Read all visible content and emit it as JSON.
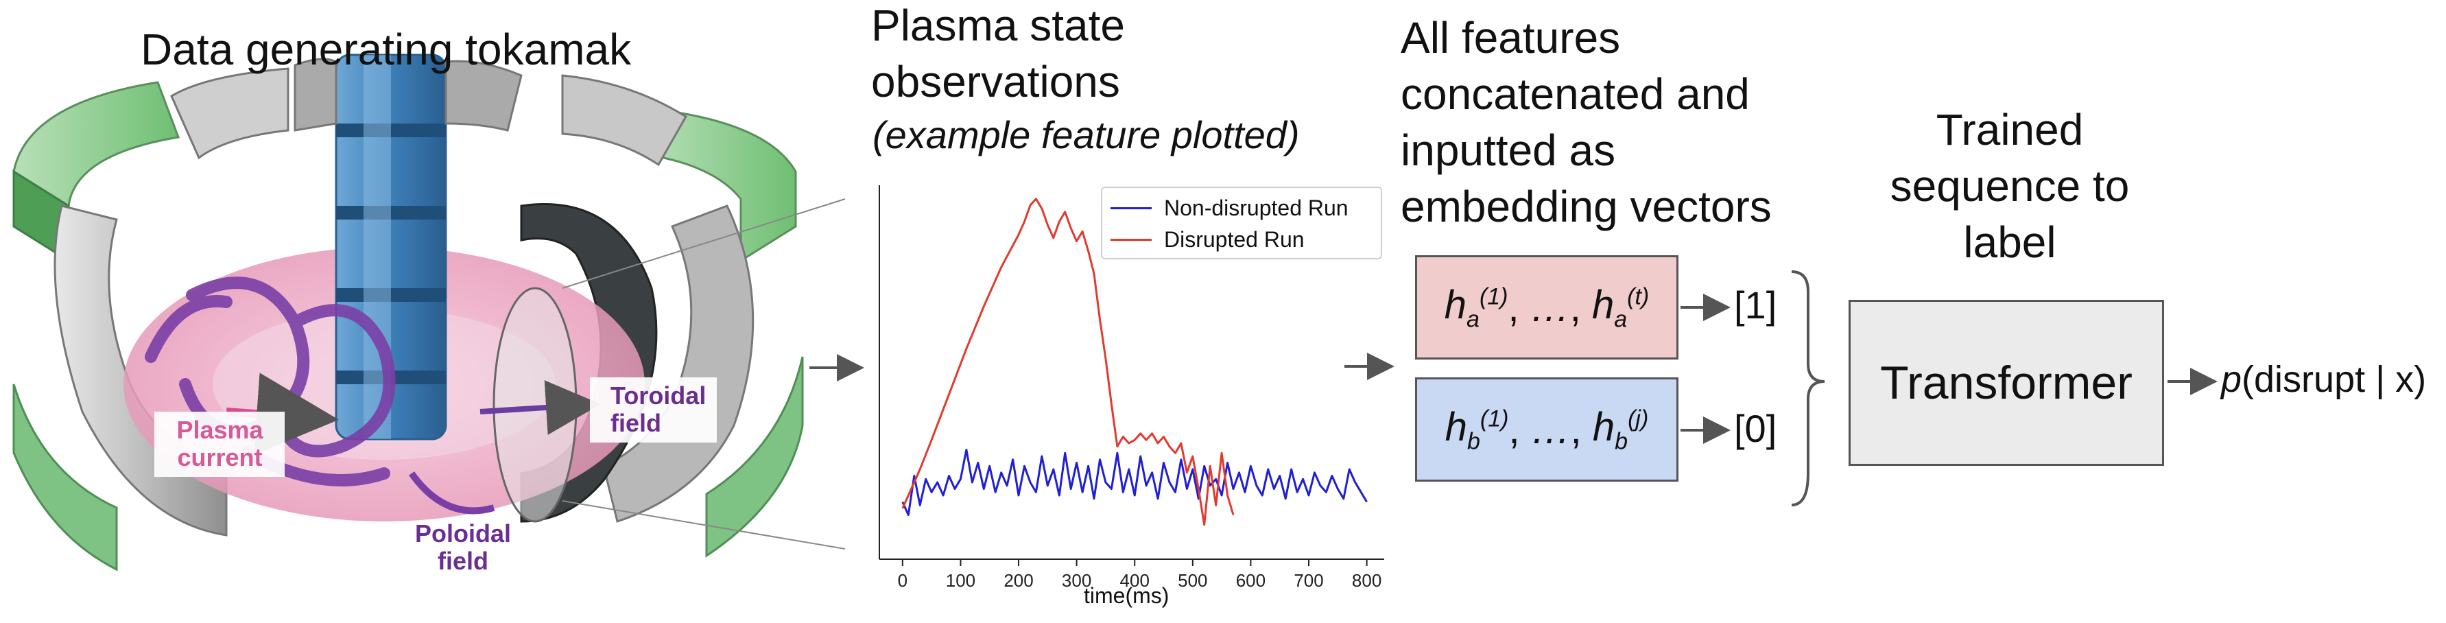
{
  "left_panel": {
    "title": "Data generating tokamak",
    "labels": {
      "plasma_current": [
        "Plasma",
        "current"
      ],
      "toroidal_field": [
        "Toroidal",
        "field"
      ],
      "poloidal_field": [
        "Poloidal",
        "field"
      ]
    }
  },
  "middle_panel": {
    "title_lines": [
      "Plasma state",
      "observations"
    ],
    "subtitle": "(example feature plotted)"
  },
  "features_panel": {
    "title_lines": [
      "All features",
      "concatenated and",
      "inputted as",
      "embedding vectors"
    ],
    "embedding_a": {
      "base": "h",
      "sub": "a",
      "sup_first": "(1)",
      "sup_last": "(t)",
      "ellipsis": "…",
      "label": "[1]"
    },
    "embedding_b": {
      "base": "h",
      "sub": "b",
      "sup_first": "(1)",
      "sup_last": "(j)",
      "ellipsis": "…",
      "label": "[0]"
    }
  },
  "model_panel": {
    "title_lines": [
      "Trained",
      "sequence to",
      "label"
    ],
    "box_label": "Transformer",
    "output": {
      "p": "p",
      "rest": "(disrupt | x)"
    }
  },
  "colors": {
    "non_disrupted": "#1f1fd6",
    "disrupted": "#e23a2f",
    "embedding_a_fill": "#f0cccc",
    "embedding_b_fill": "#c9d8f3",
    "transformer_fill": "#ebebeb",
    "poloidal_label": "#6a2d91",
    "plasma_label": "#d65a95"
  },
  "chart_data": {
    "type": "line",
    "title": "",
    "xlabel": "time(ms)",
    "ylabel": "",
    "xlim": [
      -40,
      830
    ],
    "ylim": [
      0,
      1
    ],
    "xticks": [
      0,
      100,
      200,
      300,
      400,
      500,
      600,
      700,
      800
    ],
    "legend_position": "top-right",
    "grid": false,
    "series": [
      {
        "name": "Non-disrupted Run",
        "color": "#1f1fd6",
        "x": [
          0,
          10,
          20,
          30,
          40,
          50,
          60,
          70,
          80,
          90,
          100,
          110,
          120,
          130,
          140,
          150,
          160,
          170,
          180,
          190,
          200,
          210,
          220,
          230,
          240,
          250,
          260,
          270,
          280,
          290,
          300,
          310,
          320,
          330,
          340,
          350,
          360,
          370,
          380,
          390,
          400,
          410,
          420,
          430,
          440,
          450,
          460,
          470,
          480,
          490,
          500,
          510,
          520,
          530,
          540,
          550,
          560,
          570,
          580,
          590,
          600,
          610,
          620,
          630,
          640,
          650,
          660,
          670,
          680,
          690,
          700,
          710,
          720,
          730,
          740,
          750,
          760,
          770,
          780,
          790,
          800
        ],
        "y": [
          0.06,
          0.02,
          0.14,
          0.05,
          0.13,
          0.09,
          0.12,
          0.08,
          0.14,
          0.1,
          0.13,
          0.22,
          0.12,
          0.18,
          0.1,
          0.17,
          0.09,
          0.15,
          0.11,
          0.19,
          0.08,
          0.17,
          0.12,
          0.09,
          0.2,
          0.11,
          0.16,
          0.08,
          0.21,
          0.1,
          0.18,
          0.09,
          0.17,
          0.07,
          0.19,
          0.12,
          0.1,
          0.21,
          0.09,
          0.16,
          0.08,
          0.2,
          0.11,
          0.15,
          0.07,
          0.18,
          0.12,
          0.09,
          0.19,
          0.1,
          0.16,
          0.07,
          0.17,
          0.11,
          0.13,
          0.08,
          0.18,
          0.1,
          0.15,
          0.09,
          0.17,
          0.11,
          0.08,
          0.16,
          0.1,
          0.14,
          0.07,
          0.16,
          0.09,
          0.13,
          0.08,
          0.15,
          0.11,
          0.09,
          0.14,
          0.1,
          0.07,
          0.16,
          0.12,
          0.09,
          0.06
        ]
      },
      {
        "name": "Disrupted Run",
        "color": "#e23a2f",
        "x": [
          0,
          10,
          20,
          30,
          50,
          80,
          110,
          140,
          170,
          200,
          210,
          220,
          230,
          240,
          250,
          260,
          270,
          280,
          290,
          300,
          310,
          320,
          330,
          340,
          350,
          360,
          370,
          380,
          390,
          400,
          410,
          420,
          430,
          440,
          450,
          460,
          470,
          480,
          490,
          500,
          510,
          520,
          530,
          540,
          550,
          560,
          570
        ],
        "y": [
          0.04,
          0.08,
          0.12,
          0.16,
          0.25,
          0.39,
          0.53,
          0.66,
          0.78,
          0.88,
          0.92,
          0.97,
          0.99,
          0.96,
          0.91,
          0.87,
          0.92,
          0.95,
          0.9,
          0.86,
          0.89,
          0.83,
          0.76,
          0.62,
          0.5,
          0.36,
          0.23,
          0.26,
          0.24,
          0.25,
          0.27,
          0.25,
          0.27,
          0.24,
          0.26,
          0.23,
          0.21,
          0.24,
          0.15,
          0.2,
          0.1,
          -0.01,
          0.17,
          0.05,
          0.21,
          0.08,
          0.02
        ]
      }
    ]
  }
}
